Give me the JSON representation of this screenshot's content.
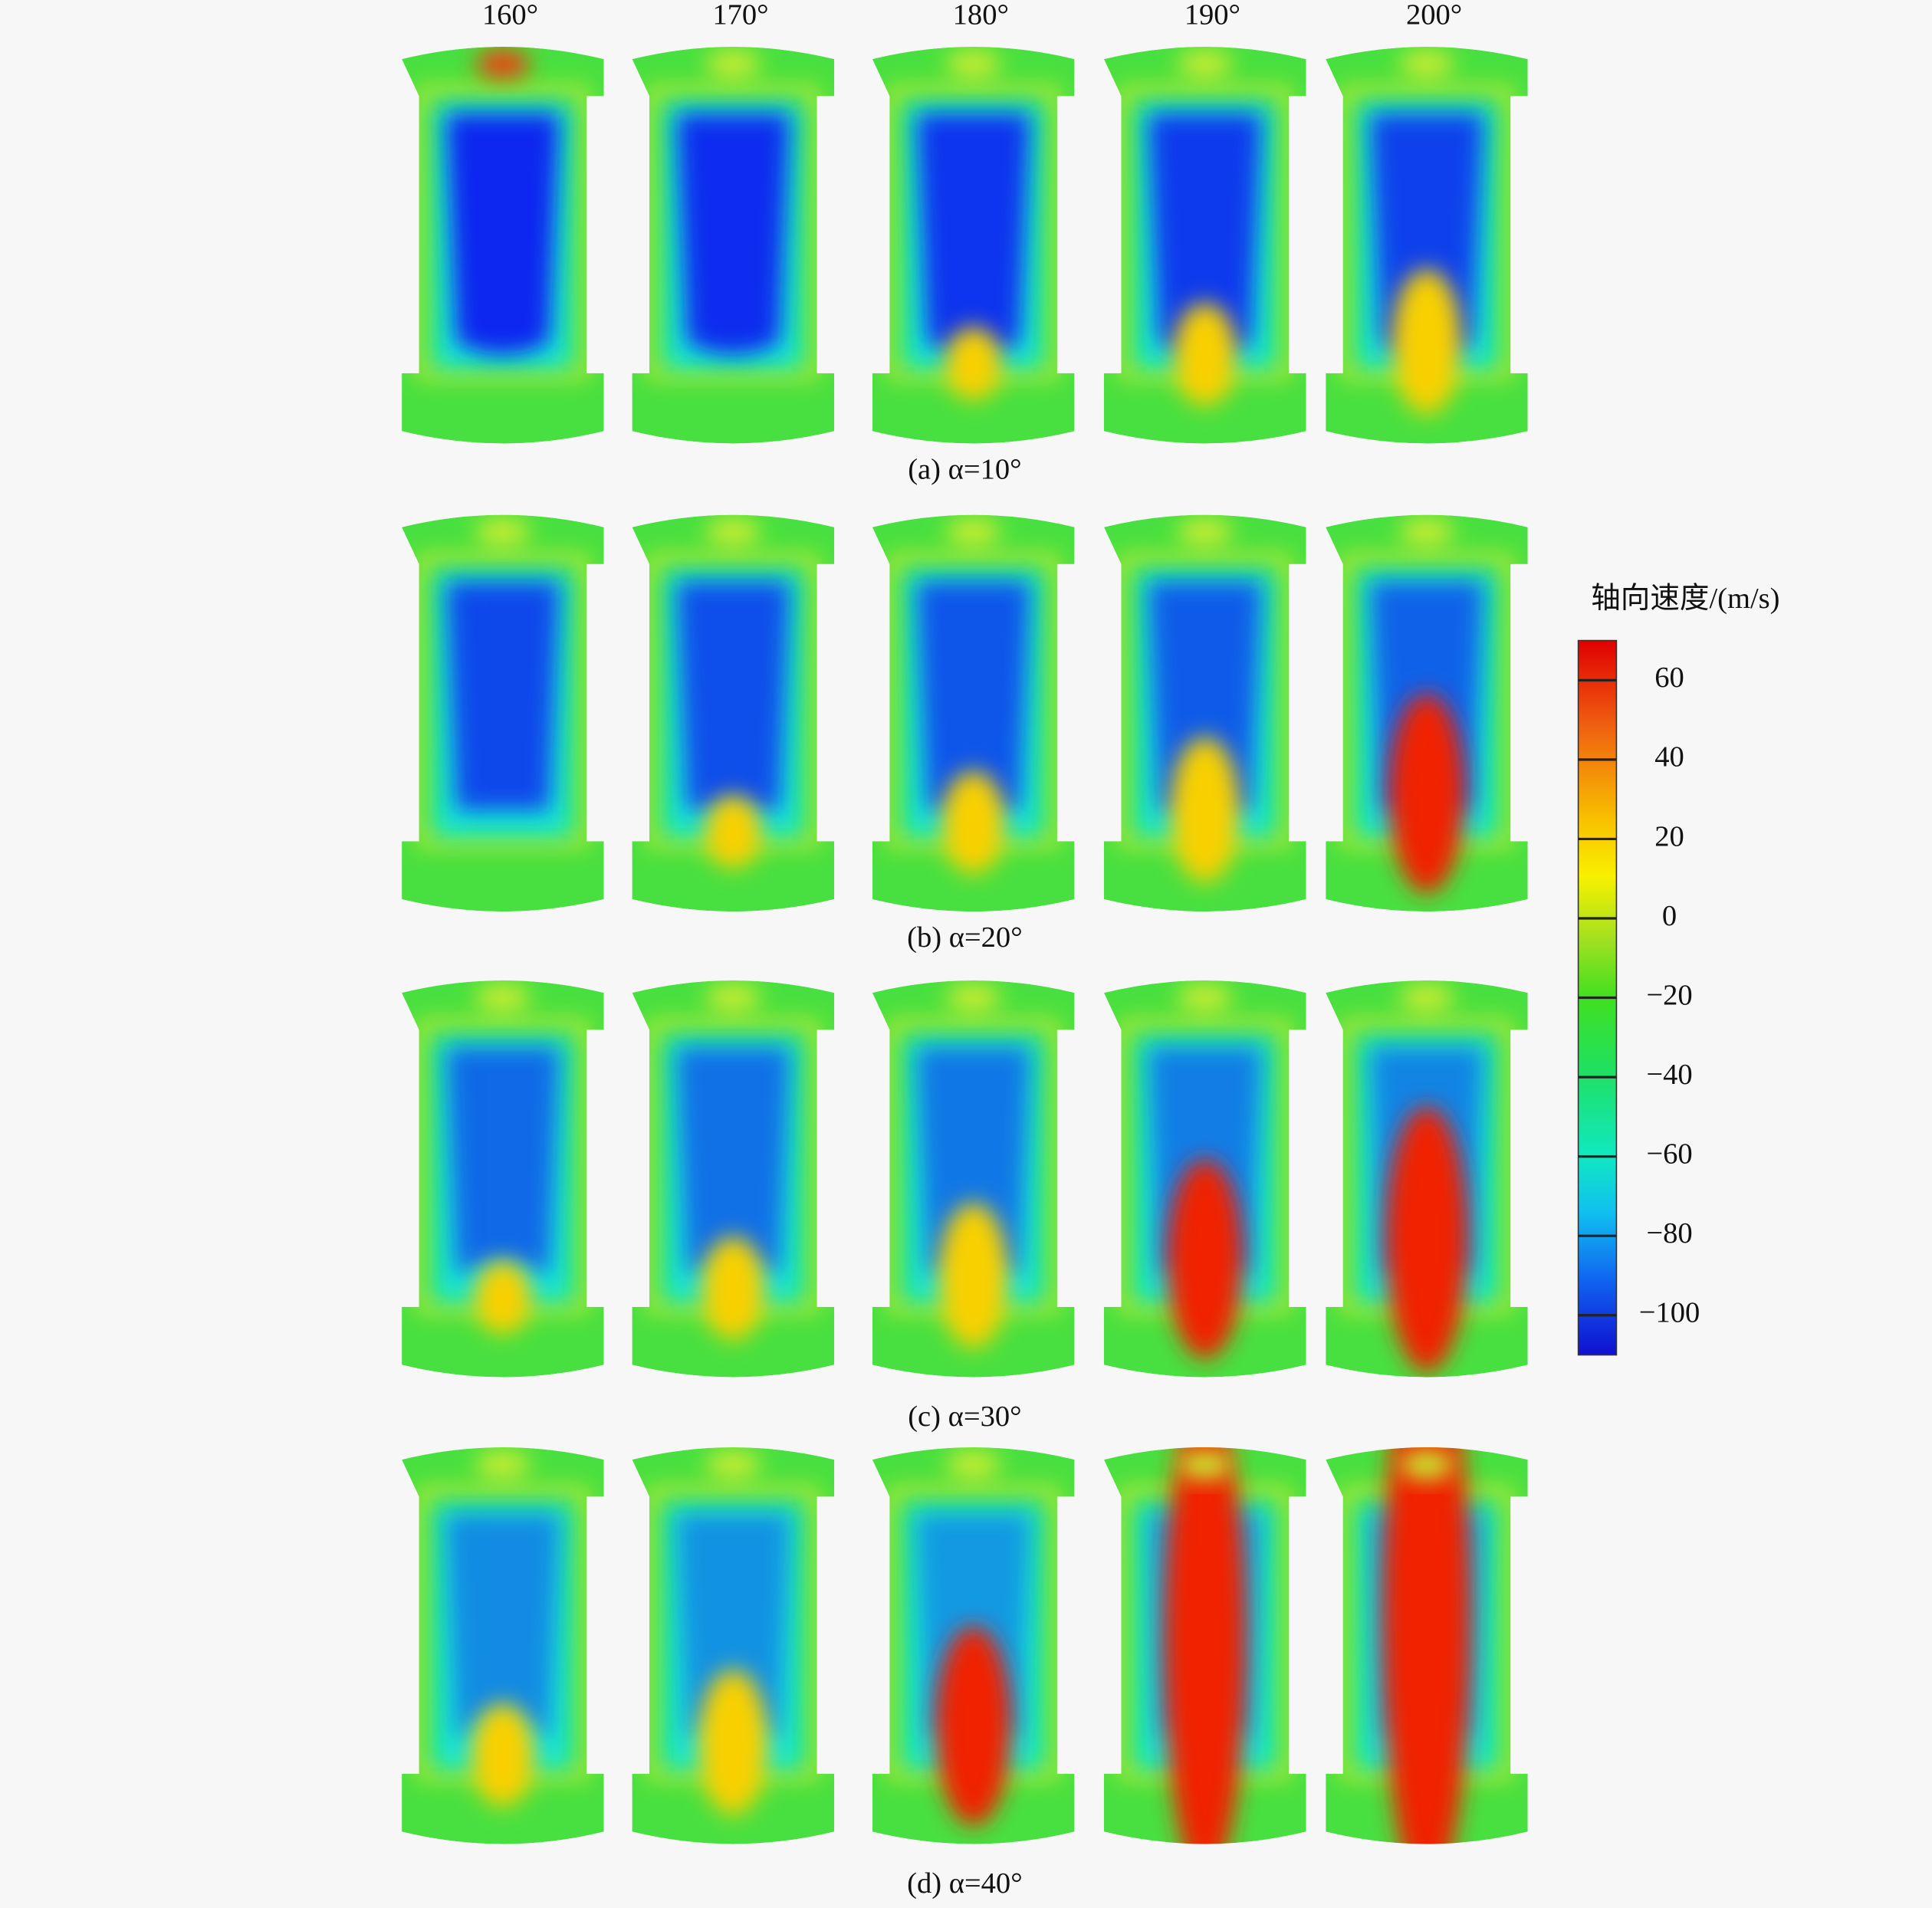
{
  "columns": [
    "160°",
    "170°",
    "180°",
    "190°",
    "200°"
  ],
  "rows": [
    {
      "caption": "(a) α=10°"
    },
    {
      "caption": "(b) α=20°"
    },
    {
      "caption": "(c) α=30°"
    },
    {
      "caption": "(d) α=40°"
    }
  ],
  "colorbar": {
    "title": "轴向速度/(m/s)",
    "lim": [
      -110,
      70
    ],
    "ticks": [
      {
        "value": 60,
        "label": "60"
      },
      {
        "value": 40,
        "label": "40"
      },
      {
        "value": 20,
        "label": "20"
      },
      {
        "value": 0,
        "label": "0"
      },
      {
        "value": -20,
        "label": "−20"
      },
      {
        "value": -40,
        "label": "−40"
      },
      {
        "value": -60,
        "label": "−60"
      },
      {
        "value": -80,
        "label": "−80"
      },
      {
        "value": -100,
        "label": "−100"
      }
    ]
  }
}
